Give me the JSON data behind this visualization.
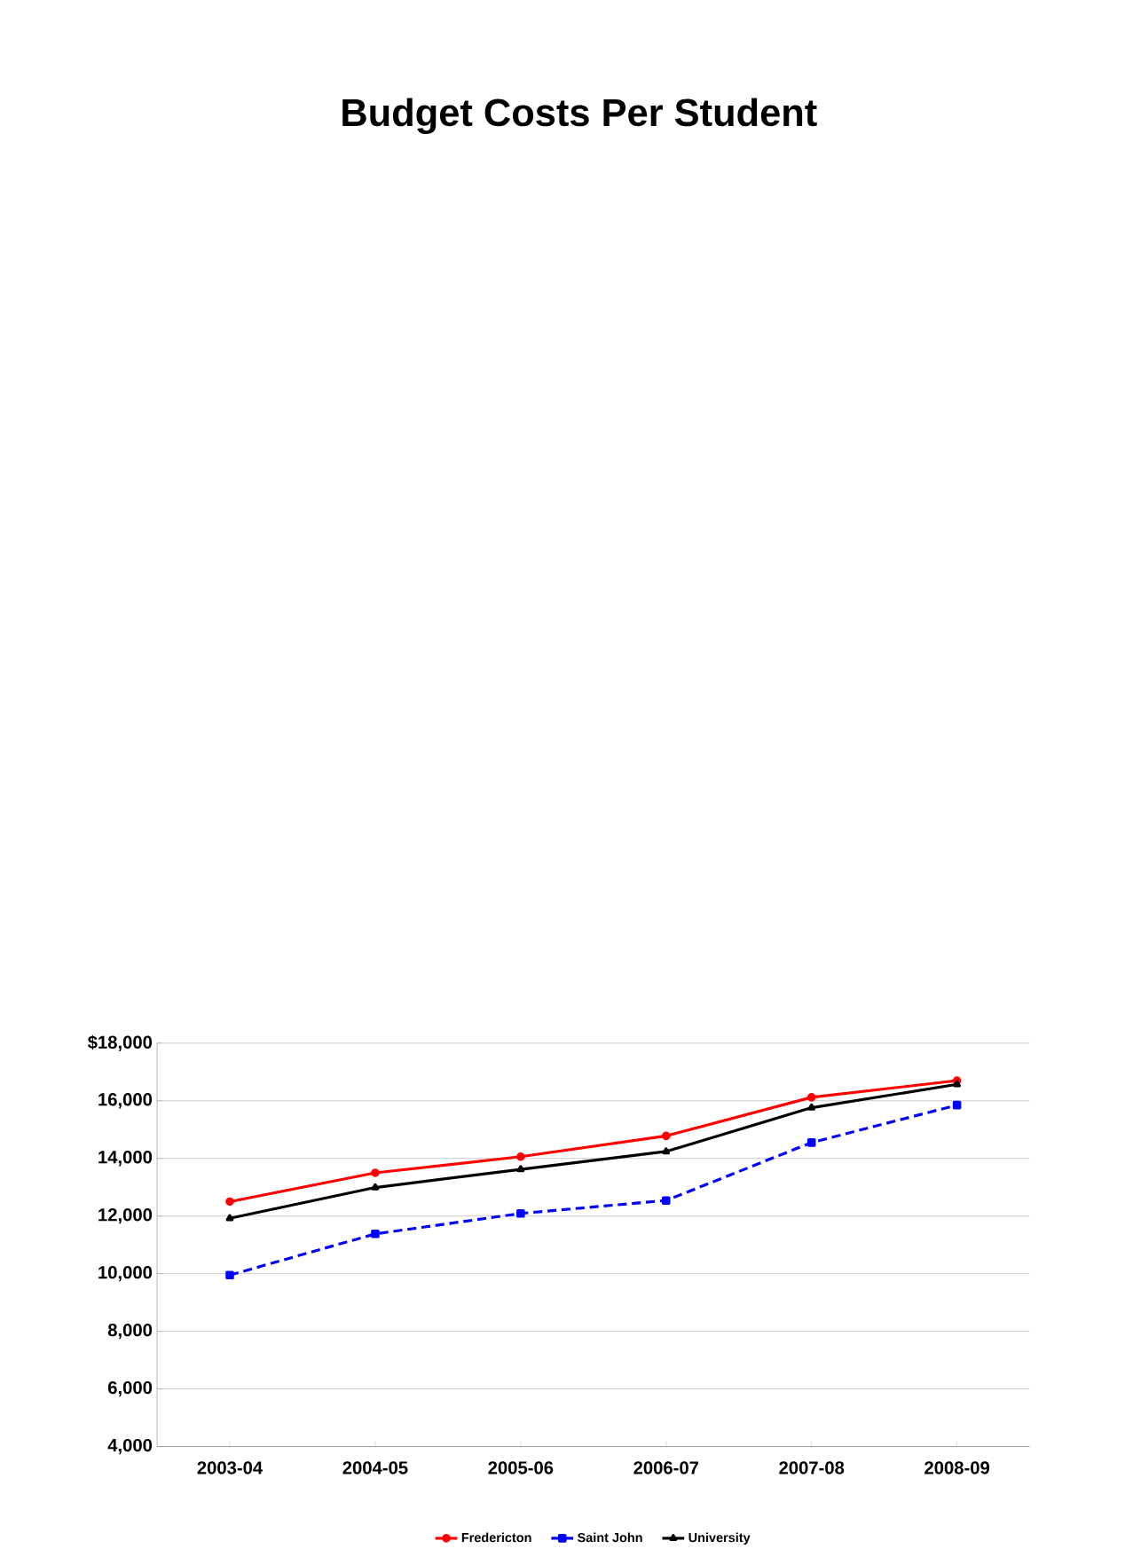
{
  "chart_data": {
    "type": "line",
    "title": "Budget Costs Per Student",
    "categories": [
      "2003-04",
      "2004-05",
      "2005-06",
      "2006-07",
      "2007-08",
      "2008-09"
    ],
    "series": [
      {
        "name": "Fredericton",
        "color": "#ff0000",
        "marker": "circle",
        "line_style": "solid",
        "values": [
          12500,
          13500,
          14060,
          14780,
          16120,
          16700
        ]
      },
      {
        "name": "Saint John",
        "color": "#0000ff",
        "marker": "square",
        "line_style": "dashed",
        "values": [
          9950,
          11380,
          12090,
          12540,
          14550,
          15850
        ]
      },
      {
        "name": "University",
        "color": "#000000",
        "marker": "triangle",
        "line_style": "solid",
        "values": [
          11920,
          12990,
          13620,
          14240,
          15760,
          16570
        ]
      }
    ],
    "ylim": [
      4000,
      18000
    ],
    "yticks": [
      {
        "value": 4000,
        "label": "4,000"
      },
      {
        "value": 6000,
        "label": "6,000"
      },
      {
        "value": 8000,
        "label": "8,000"
      },
      {
        "value": 10000,
        "label": "10,000"
      },
      {
        "value": 12000,
        "label": "12,000"
      },
      {
        "value": 14000,
        "label": "14,000"
      },
      {
        "value": 16000,
        "label": "16,000"
      },
      {
        "value": 18000,
        "label": "$18,000"
      }
    ],
    "grid": "y",
    "legend": "bottom"
  }
}
